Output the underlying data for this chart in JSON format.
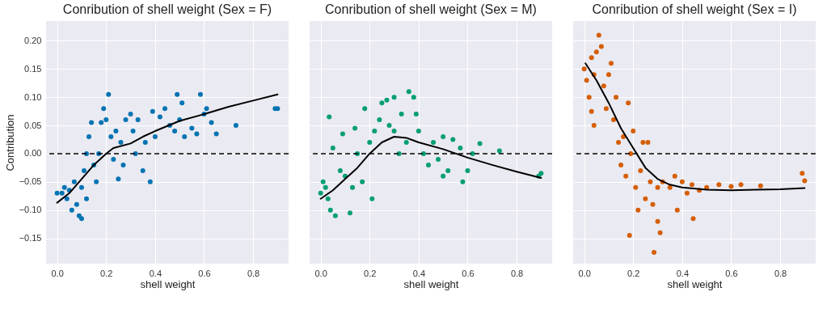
{
  "chart_data": [
    {
      "type": "scatter",
      "title": "Conribution of shell weight (Sex = F)",
      "xlabel": "shell weight",
      "ylabel": "Contribution",
      "xlim": [
        -0.045,
        0.945
      ],
      "ylim": [
        -0.195,
        0.235
      ],
      "xticks": [
        {
          "value": 0,
          "label": "0.0"
        },
        {
          "value": 0.2,
          "label": "0.2"
        },
        {
          "value": 0.4,
          "label": "0.4"
        },
        {
          "value": 0.6,
          "label": "0.6"
        },
        {
          "value": 0.8,
          "label": "0.8"
        }
      ],
      "yticks": [
        {
          "value": -0.15,
          "label": "−0.15"
        },
        {
          "value": -0.1,
          "label": "−0.10"
        },
        {
          "value": -0.05,
          "label": "−0.05"
        },
        {
          "value": 0,
          "label": "0.00"
        },
        {
          "value": 0.05,
          "label": "0.05"
        },
        {
          "value": 0.1,
          "label": "0.10"
        },
        {
          "value": 0.15,
          "label": "0.15"
        },
        {
          "value": 0.2,
          "label": "0.20"
        }
      ],
      "grid": true,
      "marker": "circle",
      "series": [
        {
          "color": "#0173b2",
          "x": [
            0.0,
            0.02,
            0.03,
            0.04,
            0.05,
            0.06,
            0.07,
            0.08,
            0.09,
            0.1,
            0.1,
            0.11,
            0.12,
            0.12,
            0.13,
            0.14,
            0.15,
            0.16,
            0.17,
            0.18,
            0.19,
            0.2,
            0.21,
            0.22,
            0.23,
            0.24,
            0.25,
            0.26,
            0.27,
            0.28,
            0.3,
            0.31,
            0.32,
            0.33,
            0.35,
            0.36,
            0.38,
            0.39,
            0.4,
            0.42,
            0.44,
            0.46,
            0.48,
            0.49,
            0.5,
            0.51,
            0.52,
            0.55,
            0.57,
            0.585,
            0.6,
            0.61,
            0.63,
            0.65,
            0.73,
            0.89,
            0.9
          ],
          "values": [
            -0.07,
            -0.07,
            -0.06,
            -0.08,
            -0.065,
            -0.1,
            -0.05,
            -0.09,
            -0.11,
            -0.115,
            -0.06,
            -0.03,
            -0.08,
            0.0,
            0.03,
            0.055,
            -0.02,
            -0.05,
            0.0,
            0.055,
            0.08,
            0.06,
            0.105,
            0.03,
            -0.01,
            0.04,
            -0.045,
            0.02,
            -0.02,
            0.06,
            0.07,
            0.04,
            0.0,
            0.06,
            -0.03,
            0.02,
            -0.05,
            0.075,
            0.03,
            0.065,
            0.08,
            0.05,
            0.04,
            0.105,
            0.06,
            0.09,
            0.03,
            0.045,
            0.035,
            0.105,
            0.07,
            0.08,
            0.055,
            0.035,
            0.05,
            0.08,
            0.08
          ]
        },
        {
          "type": "line",
          "color": "#000000",
          "line_style": "solid",
          "marker": "none",
          "x": [
            0,
            0.05,
            0.1,
            0.15,
            0.2,
            0.23,
            0.3,
            0.35,
            0.4,
            0.5,
            0.6,
            0.7,
            0.8,
            0.9
          ],
          "values": [
            -0.087,
            -0.07,
            -0.045,
            -0.02,
            0.0,
            0.01,
            0.018,
            0.03,
            0.04,
            0.058,
            0.07,
            0.083,
            0.094,
            0.105
          ]
        }
      ],
      "ref_lines": [
        {
          "axis": "y",
          "value": 0,
          "color": "#000000",
          "line_style": "dashed"
        }
      ]
    },
    {
      "type": "scatter",
      "title": "Conribution of shell weight (Sex = M)",
      "xlabel": "shell weight",
      "xlim": [
        -0.045,
        0.945
      ],
      "ylim": [
        -0.195,
        0.235
      ],
      "xticks": [
        {
          "value": 0,
          "label": "0.0"
        },
        {
          "value": 0.2,
          "label": "0.2"
        },
        {
          "value": 0.4,
          "label": "0.4"
        },
        {
          "value": 0.6,
          "label": "0.6"
        },
        {
          "value": 0.8,
          "label": "0.8"
        }
      ],
      "yticks": [
        {
          "value": -0.15,
          "label": null
        },
        {
          "value": -0.1,
          "label": null
        },
        {
          "value": -0.05,
          "label": null
        },
        {
          "value": 0,
          "label": null
        },
        {
          "value": 0.05,
          "label": null
        },
        {
          "value": 0.1,
          "label": null
        },
        {
          "value": 0.15,
          "label": null
        },
        {
          "value": 0.2,
          "label": null
        }
      ],
      "tick_labels": "x",
      "grid": true,
      "marker": "circle",
      "series": [
        {
          "color": "#029e73",
          "x": [
            0.0,
            0.01,
            0.02,
            0.03,
            0.035,
            0.04,
            0.05,
            0.06,
            0.08,
            0.09,
            0.1,
            0.12,
            0.13,
            0.14,
            0.15,
            0.17,
            0.18,
            0.2,
            0.21,
            0.22,
            0.24,
            0.25,
            0.27,
            0.28,
            0.3,
            0.3,
            0.32,
            0.33,
            0.35,
            0.36,
            0.38,
            0.39,
            0.4,
            0.42,
            0.44,
            0.46,
            0.48,
            0.5,
            0.5,
            0.52,
            0.54,
            0.57,
            0.58,
            0.6,
            0.62,
            0.65,
            0.73,
            0.89,
            0.9
          ],
          "values": [
            -0.07,
            -0.05,
            -0.06,
            -0.08,
            0.065,
            -0.1,
            0.01,
            -0.11,
            -0.03,
            0.035,
            -0.04,
            -0.105,
            -0.06,
            0.045,
            0.0,
            -0.05,
            0.08,
            0.02,
            -0.08,
            0.04,
            0.06,
            0.09,
            0.095,
            0.05,
            0.04,
            0.1,
            0.0,
            0.07,
            0.02,
            0.11,
            0.1,
            0.07,
            0.04,
            0.0,
            -0.02,
            0.02,
            -0.01,
            0.03,
            -0.04,
            -0.03,
            0.025,
            0.01,
            -0.05,
            -0.03,
            0.0,
            0.018,
            0.005,
            -0.04,
            -0.035
          ]
        },
        {
          "type": "line",
          "color": "#000000",
          "line_style": "solid",
          "marker": "none",
          "x": [
            0,
            0.05,
            0.1,
            0.15,
            0.2,
            0.25,
            0.3,
            0.35,
            0.4,
            0.5,
            0.6,
            0.7,
            0.8,
            0.9
          ],
          "values": [
            -0.08,
            -0.065,
            -0.045,
            -0.025,
            0.0,
            0.02,
            0.03,
            0.028,
            0.02,
            0.008,
            -0.007,
            -0.02,
            -0.032,
            -0.043
          ]
        }
      ],
      "ref_lines": [
        {
          "axis": "y",
          "value": 0,
          "color": "#000000",
          "line_style": "dashed"
        }
      ]
    },
    {
      "type": "scatter",
      "title": "Conribution of shell weight (Sex = I)",
      "xlabel": "shell weight",
      "xlim": [
        -0.045,
        0.945
      ],
      "ylim": [
        -0.195,
        0.235
      ],
      "xticks": [
        {
          "value": 0,
          "label": "0.0"
        },
        {
          "value": 0.2,
          "label": "0.2"
        },
        {
          "value": 0.4,
          "label": "0.4"
        },
        {
          "value": 0.6,
          "label": "0.6"
        },
        {
          "value": 0.8,
          "label": "0.8"
        }
      ],
      "yticks": [
        {
          "value": -0.15,
          "label": null
        },
        {
          "value": -0.1,
          "label": null
        },
        {
          "value": -0.05,
          "label": null
        },
        {
          "value": 0,
          "label": null
        },
        {
          "value": 0.05,
          "label": null
        },
        {
          "value": 0.1,
          "label": null
        },
        {
          "value": 0.15,
          "label": null
        },
        {
          "value": 0.2,
          "label": null
        }
      ],
      "tick_labels": "x",
      "grid": true,
      "marker": "circle",
      "series": [
        {
          "color": "#d55e00",
          "x": [
            0.0,
            0.01,
            0.02,
            0.03,
            0.03,
            0.04,
            0.04,
            0.05,
            0.06,
            0.07,
            0.08,
            0.09,
            0.1,
            0.11,
            0.12,
            0.13,
            0.14,
            0.15,
            0.16,
            0.17,
            0.18,
            0.185,
            0.19,
            0.2,
            0.21,
            0.22,
            0.23,
            0.24,
            0.25,
            0.26,
            0.27,
            0.28,
            0.285,
            0.3,
            0.3,
            0.31,
            0.32,
            0.35,
            0.37,
            0.38,
            0.4,
            0.42,
            0.44,
            0.445,
            0.47,
            0.5,
            0.55,
            0.6,
            0.64,
            0.72,
            0.89,
            0.9
          ],
          "values": [
            0.15,
            0.13,
            0.1,
            0.075,
            0.17,
            0.14,
            0.05,
            0.18,
            0.21,
            0.19,
            0.12,
            0.08,
            0.14,
            0.16,
            0.06,
            0.1,
            0.02,
            -0.02,
            0.03,
            -0.04,
            0.09,
            -0.145,
            0.0,
            0.04,
            -0.06,
            -0.1,
            -0.03,
            0.02,
            -0.08,
            0.02,
            -0.05,
            -0.09,
            -0.175,
            -0.06,
            -0.12,
            -0.14,
            -0.05,
            -0.06,
            -0.04,
            -0.1,
            -0.05,
            -0.07,
            -0.055,
            -0.115,
            -0.065,
            -0.06,
            -0.055,
            -0.058,
            -0.055,
            -0.057,
            -0.035,
            -0.048
          ]
        },
        {
          "type": "line",
          "color": "#000000",
          "line_style": "solid",
          "marker": "none",
          "x": [
            0.005,
            0.05,
            0.1,
            0.15,
            0.2,
            0.25,
            0.3,
            0.35,
            0.4,
            0.5,
            0.6,
            0.7,
            0.8,
            0.9
          ],
          "values": [
            0.16,
            0.13,
            0.09,
            0.045,
            0.01,
            -0.025,
            -0.045,
            -0.055,
            -0.06,
            -0.064,
            -0.065,
            -0.064,
            -0.063,
            -0.061
          ]
        }
      ],
      "ref_lines": [
        {
          "axis": "y",
          "value": 0,
          "color": "#000000",
          "line_style": "dashed"
        }
      ]
    }
  ]
}
